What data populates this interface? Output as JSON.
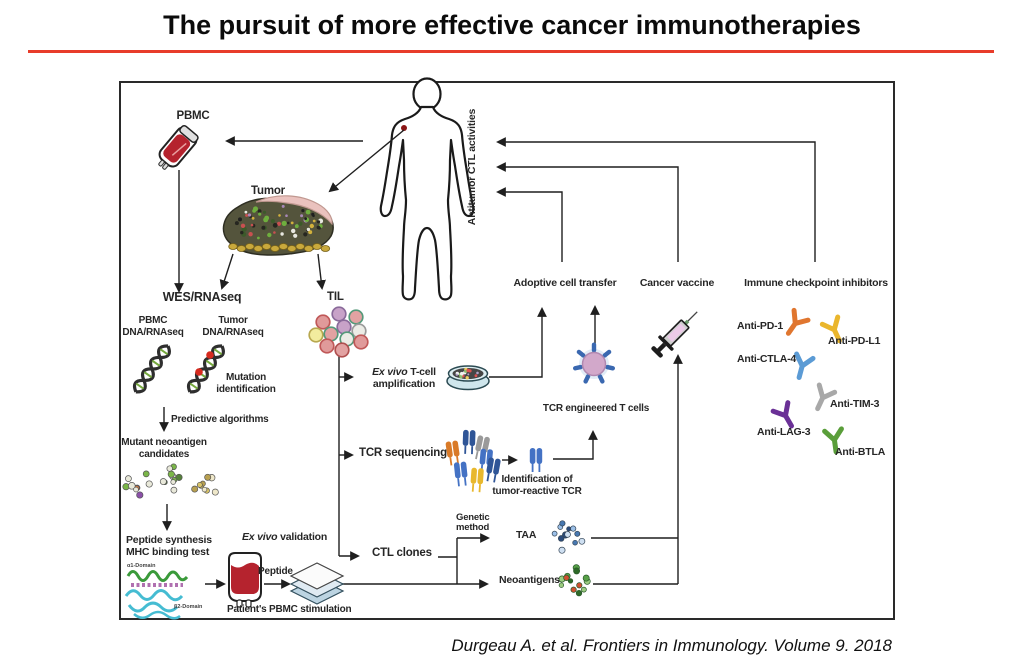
{
  "title": "The pursuit of more effective cancer immunotherapies",
  "citation": "Durgeau A. et al. Frontiers in Immunology. Volume 9. 2018",
  "colors": {
    "accent_red": "#e83c2a",
    "blood_red": "#b5232e",
    "dna_green": "#76a93e",
    "tcr_blue": "#4472c4"
  },
  "diagram": {
    "antitumor_axis": "Antitumor CTL activities",
    "pbmc": "PBMC",
    "tumor": "Tumor",
    "wes": "WES/RNAseq",
    "pbmc_dna": {
      "l1": "PBMC",
      "l2": "DNA/RNAseq"
    },
    "tumor_dna": {
      "l1": "Tumor",
      "l2": "DNA/RNAseq"
    },
    "mutation": {
      "l1": "Mutation",
      "l2": "identification"
    },
    "predictive": "Predictive algorithms",
    "mutant": {
      "l1": "Mutant neoantigen",
      "l2": "candidates"
    },
    "peptide_synthesis": {
      "l1": "Peptide synthesis",
      "l2": "MHC binding test"
    },
    "mhc_domains": {
      "alpha": "α1-Domain",
      "beta": "β2-Domain"
    },
    "ex_vivo_validation": {
      "italic": "Ex vivo",
      "rest": " validation"
    },
    "peptide": "Peptide",
    "patient_pbmc": "Patient's PBMC stimulation",
    "til": "TIL",
    "ex_vivo_amp": {
      "italic": "Ex vivo",
      "rest": " T-cell",
      "l2": "amplification"
    },
    "tcr_sequencing": "TCR sequencing",
    "identification": {
      "l1": "Identification of",
      "l2": "tumor-reactive TCR"
    },
    "tcr_engineered": "TCR engineered T cells",
    "ctl_clones": "CTL clones",
    "genetic_method": {
      "l1": "Genetic",
      "l2": "method"
    },
    "taa": "TAA",
    "neoantigens": "Neoantigens",
    "adoptive": "Adoptive cell transfer",
    "cancer_vaccine": "Cancer vaccine",
    "checkpoint": "Immune checkpoint inhibitors",
    "antibodies": [
      {
        "label": "Anti-PD-1",
        "color": "#e0762f"
      },
      {
        "label": "Anti-PD-L1",
        "color": "#eab62c"
      },
      {
        "label": "Anti-CTLA-4",
        "color": "#5b9bd5"
      },
      {
        "label": "Anti-TIM-3",
        "color": "#a8a8a8"
      },
      {
        "label": "Anti-LAG-3",
        "color": "#6a3096"
      },
      {
        "label": "Anti-BTLA",
        "color": "#5a9e3a"
      }
    ]
  }
}
